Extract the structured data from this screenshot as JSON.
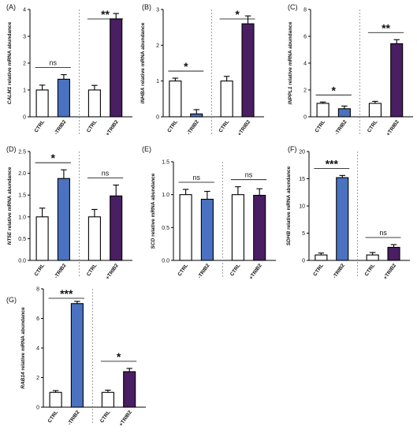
{
  "colors": {
    "ctrl_fill": "#ffffff",
    "minus_fill": "#4a72c0",
    "plus_fill": "#4a1e62",
    "stroke": "#000000",
    "divider": "#888888"
  },
  "chart_data": [
    {
      "panel": "(A)",
      "type": "bar",
      "gene": "CALM1",
      "ylabel_rest": " relative mRNA abundance",
      "ylim": [
        0,
        4
      ],
      "yticks": [
        "0",
        "1",
        "2",
        "3",
        "4"
      ],
      "categories": [
        "CTRL",
        "-TRIB2",
        "CTRL",
        "+TRIB2"
      ],
      "groups": [
        "ctrl",
        "minus",
        "ctrl",
        "plus"
      ],
      "values": [
        1.0,
        1.4,
        1.0,
        3.65
      ],
      "errors": [
        0.18,
        0.17,
        0.17,
        0.2
      ],
      "significance": [
        {
          "label": "ns",
          "pair": [
            0,
            1
          ]
        },
        {
          "label": "**",
          "pair": [
            2,
            3
          ]
        }
      ]
    },
    {
      "panel": "(B)",
      "type": "bar",
      "gene": "INHBA",
      "ylabel_rest": " relative mRNA abundance",
      "ylim": [
        0,
        3
      ],
      "yticks": [
        "0",
        "1",
        "2",
        "3"
      ],
      "categories": [
        "CTRL",
        "-TRIB2",
        "CTRL",
        "+TRIB2"
      ],
      "groups": [
        "ctrl",
        "minus",
        "ctrl",
        "plus"
      ],
      "values": [
        1.0,
        0.08,
        1.0,
        2.6
      ],
      "errors": [
        0.08,
        0.12,
        0.13,
        0.22
      ],
      "significance": [
        {
          "label": "*",
          "pair": [
            0,
            1
          ]
        },
        {
          "label": "*",
          "pair": [
            2,
            3
          ]
        }
      ]
    },
    {
      "panel": "(C)",
      "type": "bar",
      "gene": "INPPL1",
      "ylabel_rest": " relative mRNA abundance",
      "ylim": [
        0,
        8
      ],
      "yticks": [
        "0",
        "2",
        "4",
        "6",
        "8"
      ],
      "categories": [
        "CTRL",
        "-TRIB2",
        "CTRL",
        "+TRIB2"
      ],
      "groups": [
        "ctrl",
        "minus",
        "ctrl",
        "plus"
      ],
      "values": [
        1.0,
        0.6,
        1.0,
        5.45
      ],
      "errors": [
        0.1,
        0.2,
        0.15,
        0.3
      ],
      "significance": [
        {
          "label": "*",
          "pair": [
            0,
            1
          ]
        },
        {
          "label": "**",
          "pair": [
            2,
            3
          ]
        }
      ]
    },
    {
      "panel": "(D)",
      "type": "bar",
      "gene": "NT5E",
      "ylabel_rest": " relative mRNA abundance",
      "ylim": [
        0,
        2.5
      ],
      "yticks": [
        "0.0",
        "0.5",
        "1.0",
        "1.5",
        "2.0",
        "2.5"
      ],
      "categories": [
        "CTRL",
        "-TRIB2",
        "CTRL",
        "+TRIB2"
      ],
      "groups": [
        "ctrl",
        "minus",
        "ctrl",
        "plus"
      ],
      "values": [
        1.0,
        1.88,
        1.0,
        1.48
      ],
      "errors": [
        0.2,
        0.2,
        0.17,
        0.25
      ],
      "significance": [
        {
          "label": "*",
          "pair": [
            0,
            1
          ]
        },
        {
          "label": "ns",
          "pair": [
            2,
            3
          ]
        }
      ]
    },
    {
      "panel": "(E)",
      "type": "bar",
      "gene": "SCD",
      "ylabel_rest": " relative mRNA abundance",
      "ylim": [
        0,
        1.5
      ],
      "yticks": [
        "0.0",
        "0.5",
        "1.0",
        "1.5"
      ],
      "categories": [
        "CTRL",
        "-TRIB2",
        "CTRL",
        "+TRIB2"
      ],
      "groups": [
        "ctrl",
        "minus",
        "ctrl",
        "plus"
      ],
      "values": [
        1.0,
        0.93,
        1.0,
        0.99
      ],
      "errors": [
        0.08,
        0.12,
        0.12,
        0.1
      ],
      "significance": [
        {
          "label": "ns",
          "pair": [
            0,
            1
          ]
        },
        {
          "label": "ns",
          "pair": [
            2,
            3
          ]
        }
      ]
    },
    {
      "panel": "(F)",
      "type": "bar",
      "gene": "SDHB",
      "ylabel_rest": " relative mRNA abundance",
      "ylim": [
        0,
        20
      ],
      "yticks": [
        "0",
        "5",
        "10",
        "15",
        "20"
      ],
      "categories": [
        "CTRL",
        "-TRIB2",
        "CTRL",
        "+TRIB2"
      ],
      "groups": [
        "ctrl",
        "minus",
        "ctrl",
        "plus"
      ],
      "values": [
        1.0,
        15.2,
        1.0,
        2.4
      ],
      "errors": [
        0.35,
        0.4,
        0.45,
        0.5
      ],
      "significance": [
        {
          "label": "***",
          "pair": [
            0,
            1
          ]
        },
        {
          "label": "ns",
          "pair": [
            2,
            3
          ]
        }
      ]
    },
    {
      "panel": "(G)",
      "type": "bar",
      "gene": "RAB14",
      "ylabel_rest": " relative mRNA abundance",
      "ylim": [
        0,
        8
      ],
      "yticks": [
        "0",
        "2",
        "4",
        "6",
        "8"
      ],
      "categories": [
        "CTRL",
        "-TRIB2",
        "CTRL",
        "+TRIB2"
      ],
      "groups": [
        "ctrl",
        "minus",
        "ctrl",
        "plus"
      ],
      "values": [
        1.0,
        7.0,
        1.0,
        2.4
      ],
      "errors": [
        0.12,
        0.15,
        0.15,
        0.22
      ],
      "significance": [
        {
          "label": "***",
          "pair": [
            0,
            1
          ]
        },
        {
          "label": "*",
          "pair": [
            2,
            3
          ]
        }
      ]
    }
  ]
}
